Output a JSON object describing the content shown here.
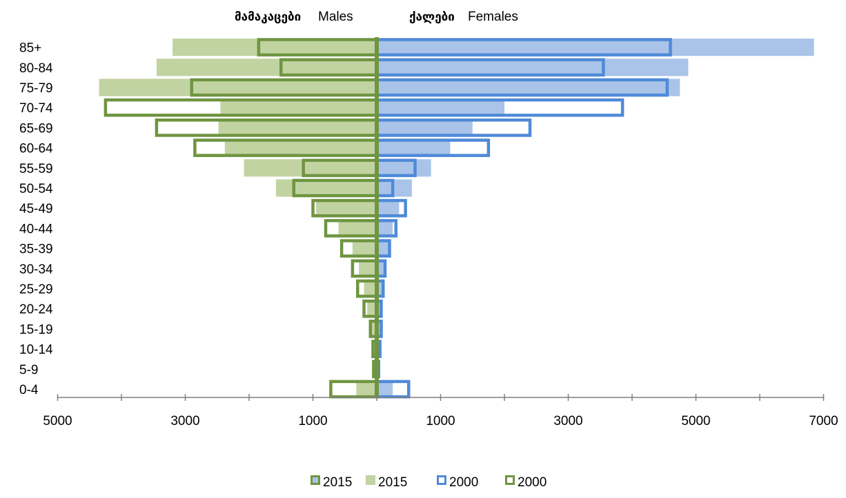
{
  "chart_data": {
    "type": "bar",
    "subtype": "population-pyramid",
    "header": {
      "males_geo": "მამაკაცები",
      "males_en": "Males",
      "females_geo": "ქალები",
      "females_en": "Females"
    },
    "categories": [
      "85+",
      "80-84",
      "75-79",
      "70-74",
      "65-69",
      "60-64",
      "55-59",
      "50-54",
      "45-49",
      "40-44",
      "35-39",
      "30-34",
      "25-29",
      "20-24",
      "15-19",
      "10-14",
      "5-9",
      "0-4"
    ],
    "x_ticks": [
      {
        "label": "5000",
        "value": -5000
      },
      {
        "label": "3000",
        "value": -3000
      },
      {
        "label": "1000",
        "value": -1000
      },
      {
        "label": "1000",
        "value": 1000
      },
      {
        "label": "3000",
        "value": 3000
      },
      {
        "label": "5000",
        "value": 5000
      },
      {
        "label": "7000",
        "value": 7000
      }
    ],
    "xlim": [
      -5000,
      7000
    ],
    "colors": {
      "females_2015_fill": "#a9c4e8",
      "males_2015_fill": "#c2d3a2",
      "outline_2000_females": "#4f8ad8",
      "outline_2000_males": "#6f9540",
      "axis": "#7f7f7f"
    },
    "series": [
      {
        "name": "2015",
        "side": "females",
        "style": "fill",
        "values": [
          6850,
          4880,
          4750,
          2000,
          1500,
          1150,
          850,
          550,
          350,
          250,
          200,
          150,
          100,
          80,
          80,
          60,
          30,
          250
        ]
      },
      {
        "name": "2015",
        "side": "males",
        "style": "fill",
        "values": [
          3200,
          3450,
          4350,
          2450,
          2480,
          2380,
          2080,
          1580,
          950,
          600,
          380,
          280,
          200,
          150,
          80,
          50,
          40,
          320
        ]
      },
      {
        "name": "2000",
        "side": "females",
        "style": "outline",
        "values": [
          4600,
          3550,
          4550,
          3850,
          2400,
          1750,
          600,
          250,
          450,
          300,
          200,
          130,
          100,
          70,
          70,
          50,
          30,
          500
        ]
      },
      {
        "name": "2000",
        "side": "males",
        "style": "outline",
        "values": [
          1850,
          1500,
          2900,
          4250,
          3450,
          2850,
          1150,
          1300,
          1000,
          800,
          550,
          380,
          300,
          200,
          100,
          60,
          50,
          720
        ]
      }
    ],
    "legend": {
      "placement": "bottom",
      "entries": [
        {
          "label": "2015",
          "swatch": "females_fill"
        },
        {
          "label": "2015",
          "swatch": "males_fill"
        },
        {
          "label": "2000",
          "swatch": "females_outline"
        },
        {
          "label": "2000",
          "swatch": "males_outline"
        }
      ]
    },
    "grid": false
  }
}
